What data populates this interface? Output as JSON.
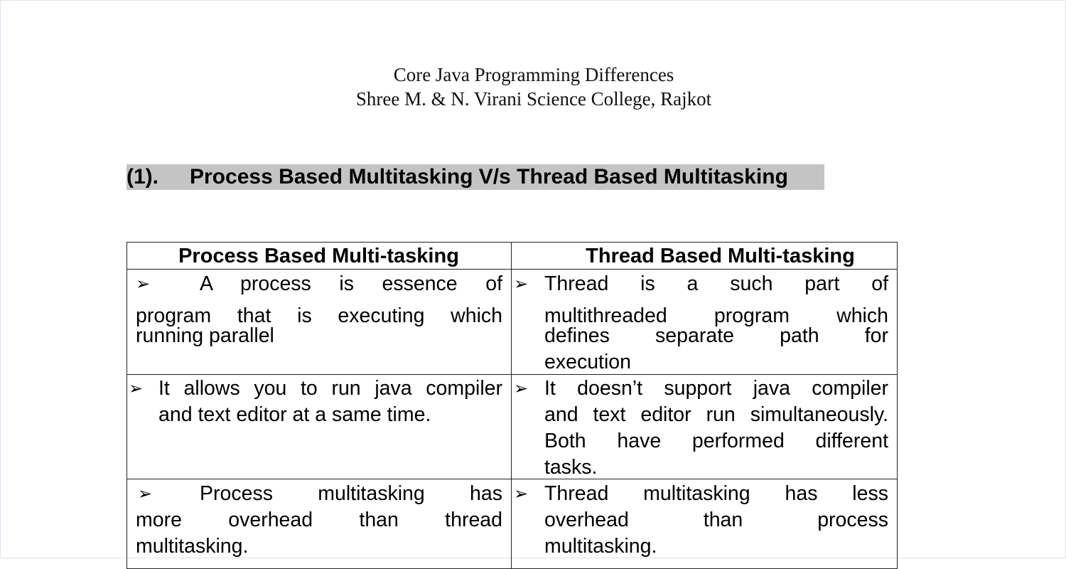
{
  "header": {
    "title": "Core Java Programming Differences",
    "college": "Shree M. & N. Virani Science College, Rajkot"
  },
  "section": {
    "number": "(1).",
    "title": "Process Based Multitasking V/s Thread Based Multitasking"
  },
  "table": {
    "columns": [
      "Process Based Multi-tasking",
      "Thread Based Multi-tasking"
    ],
    "bullet": "➢",
    "rows": [
      {
        "left": [
          "A process is essence of",
          "program that is executing which",
          "running parallel"
        ],
        "right": [
          "Thread is a such part of",
          "multithreaded program which",
          "defines separate path for",
          "execution"
        ]
      },
      {
        "left": [
          "It allows you to run java compiler",
          "and text editor at a same time."
        ],
        "right": [
          "It doesn’t support java compiler",
          "and text editor run simultaneously.",
          "Both have performed different",
          "tasks."
        ]
      },
      {
        "left": [
          "Process multitasking has",
          "more overhead than thread",
          "multitasking."
        ],
        "right": [
          "Thread multitasking has less",
          "overhead than process",
          "multitasking."
        ]
      }
    ]
  }
}
